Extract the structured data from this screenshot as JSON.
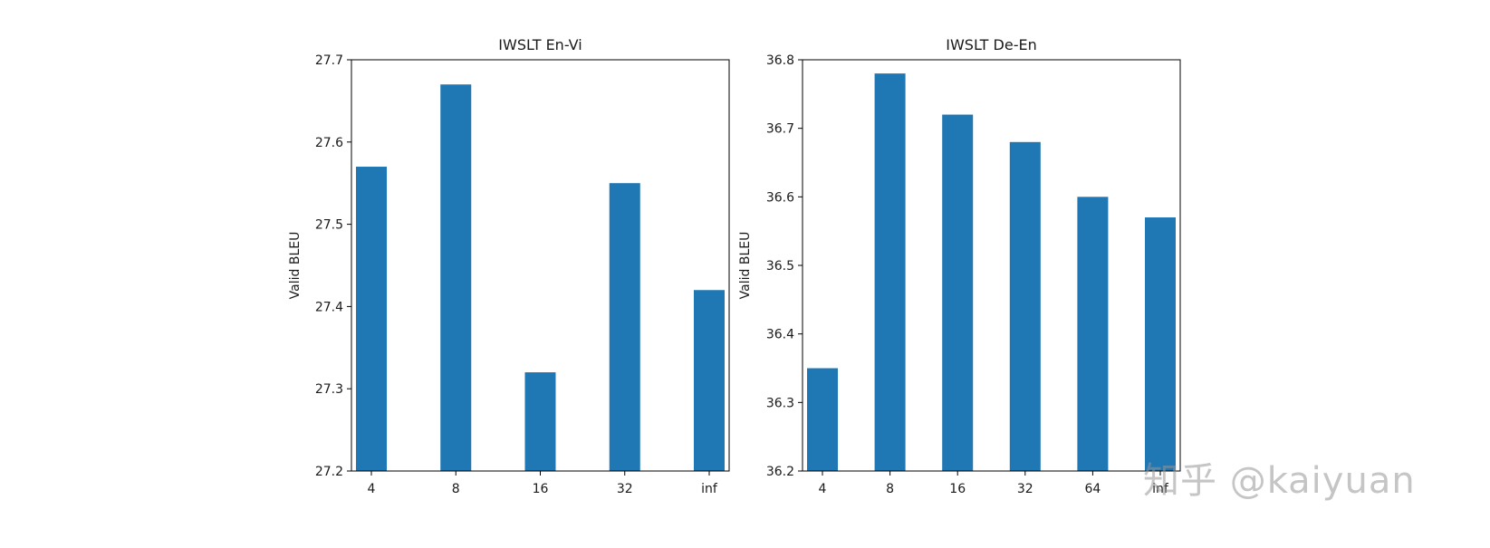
{
  "chart_data": [
    {
      "type": "bar",
      "title": "IWSLT En-Vi",
      "xlabel": "",
      "ylabel": "Valid BLEU",
      "categories": [
        "4",
        "8",
        "16",
        "32",
        "inf"
      ],
      "values": [
        27.57,
        27.67,
        27.32,
        27.55,
        27.42
      ],
      "ylim": [
        27.2,
        27.7
      ],
      "yticks": [
        "27.2",
        "27.3",
        "27.4",
        "27.5",
        "27.6",
        "27.7"
      ],
      "bar_color": "#1f77b4",
      "grid": false
    },
    {
      "type": "bar",
      "title": "IWSLT De-En",
      "xlabel": "",
      "ylabel": "Valid BLEU",
      "categories": [
        "4",
        "8",
        "16",
        "32",
        "64",
        "inf"
      ],
      "values": [
        36.35,
        36.78,
        36.72,
        36.68,
        36.6,
        36.57
      ],
      "ylim": [
        36.2,
        36.8
      ],
      "yticks": [
        "36.2",
        "36.3",
        "36.4",
        "36.5",
        "36.6",
        "36.7",
        "36.8"
      ],
      "bar_color": "#1f77b4",
      "grid": false
    }
  ],
  "watermark": {
    "text": "知乎 @kaiyuan"
  }
}
